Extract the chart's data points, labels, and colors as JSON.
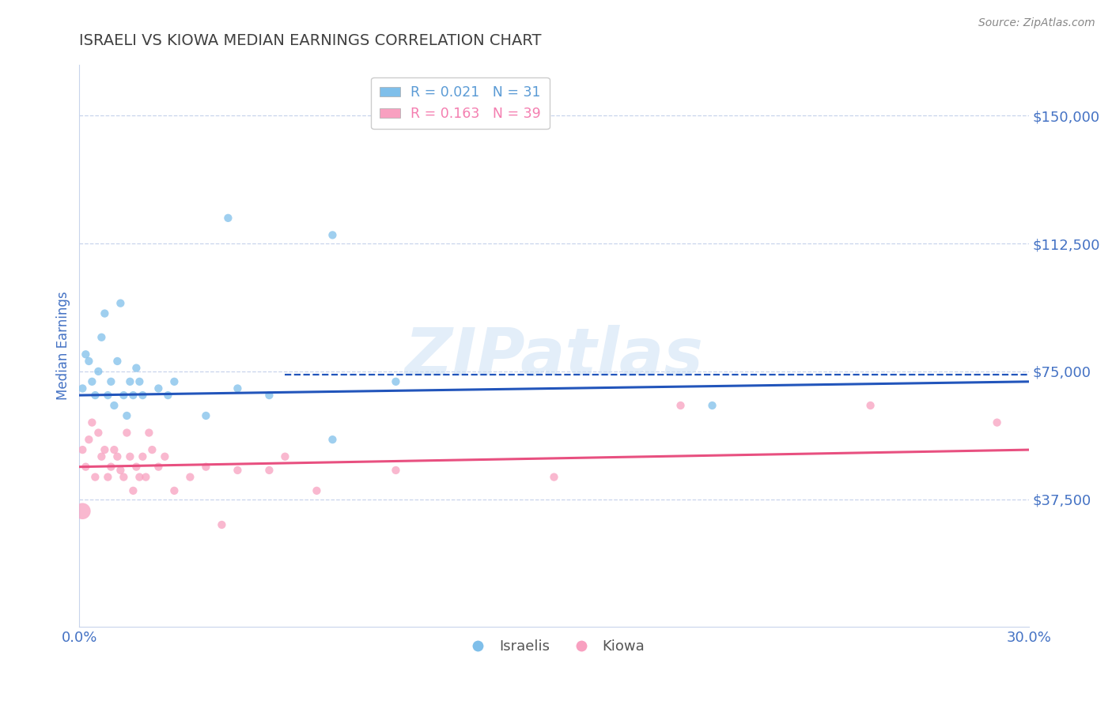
{
  "title": "ISRAELI VS KIOWA MEDIAN EARNINGS CORRELATION CHART",
  "source_text": "Source: ZipAtlas.com",
  "ylabel": "Median Earnings",
  "xlim": [
    0.0,
    0.3
  ],
  "ylim": [
    0,
    165000
  ],
  "yticks": [
    0,
    37500,
    75000,
    112500,
    150000
  ],
  "ytick_labels": [
    "",
    "$37,500",
    "$75,000",
    "$112,500",
    "$150,000"
  ],
  "xticks": [
    0.0,
    0.05,
    0.1,
    0.15,
    0.2,
    0.25,
    0.3
  ],
  "xtick_labels": [
    "0.0%",
    "",
    "",
    "",
    "",
    "",
    "30.0%"
  ],
  "watermark_text": "ZIPatlas",
  "legend_items": [
    {
      "label": "R = 0.021   N = 31",
      "color": "#5b9bd5"
    },
    {
      "label": "R = 0.163   N = 39",
      "color": "#f47eb0"
    }
  ],
  "legend_labels_bottom": [
    "Israelis",
    "Kiowa"
  ],
  "tick_color": "#4472c4",
  "grid_color": "#c8d4ec",
  "title_color": "#404040",
  "source_color": "#888888",
  "israeli_color": "#7fbfea",
  "kiowa_color": "#f8a0c0",
  "blue_trend_color": "#2255bb",
  "pink_trend_color": "#e85080",
  "israelis_scatter": [
    [
      0.001,
      70000
    ],
    [
      0.002,
      80000
    ],
    [
      0.003,
      78000
    ],
    [
      0.004,
      72000
    ],
    [
      0.005,
      68000
    ],
    [
      0.006,
      75000
    ],
    [
      0.007,
      85000
    ],
    [
      0.008,
      92000
    ],
    [
      0.009,
      68000
    ],
    [
      0.01,
      72000
    ],
    [
      0.011,
      65000
    ],
    [
      0.012,
      78000
    ],
    [
      0.013,
      95000
    ],
    [
      0.014,
      68000
    ],
    [
      0.015,
      62000
    ],
    [
      0.016,
      72000
    ],
    [
      0.017,
      68000
    ],
    [
      0.018,
      76000
    ],
    [
      0.019,
      72000
    ],
    [
      0.02,
      68000
    ],
    [
      0.025,
      70000
    ],
    [
      0.028,
      68000
    ],
    [
      0.03,
      72000
    ],
    [
      0.04,
      62000
    ],
    [
      0.05,
      70000
    ],
    [
      0.06,
      68000
    ],
    [
      0.08,
      55000
    ],
    [
      0.1,
      72000
    ],
    [
      0.2,
      65000
    ],
    [
      0.047,
      120000
    ],
    [
      0.08,
      115000
    ]
  ],
  "israelis_sizes": [
    55,
    55,
    55,
    55,
    55,
    55,
    55,
    55,
    55,
    55,
    55,
    55,
    55,
    55,
    55,
    55,
    55,
    55,
    55,
    55,
    55,
    55,
    55,
    55,
    55,
    55,
    55,
    55,
    55,
    55,
    55
  ],
  "kiowa_scatter": [
    [
      0.001,
      52000
    ],
    [
      0.002,
      47000
    ],
    [
      0.003,
      55000
    ],
    [
      0.004,
      60000
    ],
    [
      0.005,
      44000
    ],
    [
      0.006,
      57000
    ],
    [
      0.007,
      50000
    ],
    [
      0.008,
      52000
    ],
    [
      0.009,
      44000
    ],
    [
      0.01,
      47000
    ],
    [
      0.011,
      52000
    ],
    [
      0.012,
      50000
    ],
    [
      0.013,
      46000
    ],
    [
      0.014,
      44000
    ],
    [
      0.015,
      57000
    ],
    [
      0.016,
      50000
    ],
    [
      0.017,
      40000
    ],
    [
      0.018,
      47000
    ],
    [
      0.019,
      44000
    ],
    [
      0.02,
      50000
    ],
    [
      0.021,
      44000
    ],
    [
      0.022,
      57000
    ],
    [
      0.023,
      52000
    ],
    [
      0.025,
      47000
    ],
    [
      0.027,
      50000
    ],
    [
      0.03,
      40000
    ],
    [
      0.035,
      44000
    ],
    [
      0.04,
      47000
    ],
    [
      0.045,
      30000
    ],
    [
      0.05,
      46000
    ],
    [
      0.06,
      46000
    ],
    [
      0.065,
      50000
    ],
    [
      0.075,
      40000
    ],
    [
      0.1,
      46000
    ],
    [
      0.15,
      44000
    ],
    [
      0.19,
      65000
    ],
    [
      0.25,
      65000
    ],
    [
      0.29,
      60000
    ],
    [
      0.001,
      34000
    ]
  ],
  "kiowa_sizes": [
    55,
    55,
    55,
    55,
    55,
    55,
    55,
    55,
    55,
    55,
    55,
    55,
    55,
    55,
    55,
    55,
    55,
    55,
    55,
    55,
    55,
    55,
    55,
    55,
    55,
    55,
    55,
    55,
    55,
    55,
    55,
    55,
    55,
    55,
    55,
    55,
    55,
    55,
    220
  ],
  "israeli_trend_x": [
    0.0,
    0.3
  ],
  "israeli_trend_y": [
    68000,
    72000
  ],
  "kiowa_trend_x": [
    0.0,
    0.3
  ],
  "kiowa_trend_y": [
    47000,
    52000
  ],
  "dashed_line_x": [
    0.065,
    0.3
  ],
  "dashed_line_y": [
    74000,
    74000
  ]
}
